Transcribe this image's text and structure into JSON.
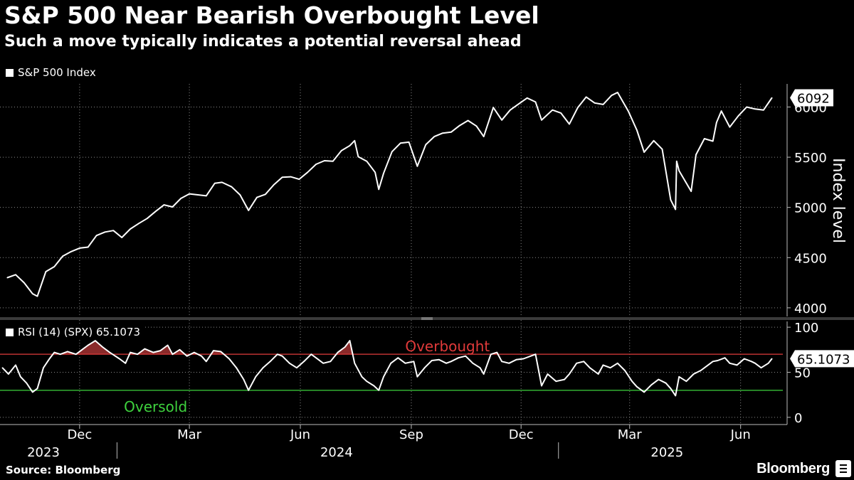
{
  "header": {
    "title": "S&P 500 Near Bearish Overbought Level",
    "subtitle": "Such a move typically indicates a potential reversal ahead"
  },
  "footer": {
    "source": "Source: Bloomberg",
    "brand": "Bloomberg"
  },
  "colors": {
    "background": "#000000",
    "line": "#ffffff",
    "grid": "#8a8a8a",
    "overbought": "#e03a3a",
    "oversold": "#3ed23e",
    "overbought_fill": "#8a2a2a"
  },
  "chart_data": [
    {
      "type": "line",
      "series": [
        {
          "name": "S&P 500 Index",
          "x": [
            "2023-10-02",
            "2023-10-09",
            "2023-10-16",
            "2023-10-23",
            "2023-10-27",
            "2023-11-03",
            "2023-11-10",
            "2023-11-17",
            "2023-11-24",
            "2023-12-01",
            "2023-12-08",
            "2023-12-15",
            "2023-12-22",
            "2023-12-29",
            "2024-01-05",
            "2024-01-12",
            "2024-01-19",
            "2024-01-26",
            "2024-02-02",
            "2024-02-09",
            "2024-02-16",
            "2024-02-23",
            "2024-03-01",
            "2024-03-08",
            "2024-03-15",
            "2024-03-22",
            "2024-03-28",
            "2024-04-05",
            "2024-04-12",
            "2024-04-19",
            "2024-04-26",
            "2024-05-03",
            "2024-05-10",
            "2024-05-17",
            "2024-05-24",
            "2024-05-31",
            "2024-06-07",
            "2024-06-14",
            "2024-06-21",
            "2024-06-28",
            "2024-07-05",
            "2024-07-12",
            "2024-07-16",
            "2024-07-19",
            "2024-07-26",
            "2024-08-02",
            "2024-08-05",
            "2024-08-09",
            "2024-08-16",
            "2024-08-23",
            "2024-08-30",
            "2024-09-06",
            "2024-09-13",
            "2024-09-20",
            "2024-09-27",
            "2024-10-04",
            "2024-10-11",
            "2024-10-18",
            "2024-10-25",
            "2024-10-31",
            "2024-11-08",
            "2024-11-15",
            "2024-11-22",
            "2024-11-29",
            "2024-12-06",
            "2024-12-13",
            "2024-12-18",
            "2024-12-27",
            "2025-01-03",
            "2025-01-10",
            "2025-01-17",
            "2025-01-24",
            "2025-01-31",
            "2025-02-07",
            "2025-02-14",
            "2025-02-19",
            "2025-02-28",
            "2025-03-07",
            "2025-03-13",
            "2025-03-21",
            "2025-03-28",
            "2025-04-04",
            "2025-04-08",
            "2025-04-09",
            "2025-04-11",
            "2025-04-21",
            "2025-04-25",
            "2025-05-02",
            "2025-05-09",
            "2025-05-12",
            "2025-05-16",
            "2025-05-23",
            "2025-05-30",
            "2025-06-06",
            "2025-06-13",
            "2025-06-20",
            "2025-06-27"
          ],
          "y": [
            4300,
            4330,
            4250,
            4140,
            4115,
            4360,
            4410,
            4515,
            4560,
            4595,
            4605,
            4720,
            4755,
            4770,
            4700,
            4785,
            4840,
            4890,
            4960,
            5025,
            5005,
            5090,
            5135,
            5125,
            5115,
            5240,
            5250,
            5205,
            5125,
            4970,
            5100,
            5130,
            5225,
            5300,
            5305,
            5280,
            5350,
            5430,
            5465,
            5460,
            5565,
            5615,
            5665,
            5505,
            5460,
            5350,
            5180,
            5340,
            5555,
            5640,
            5650,
            5410,
            5625,
            5705,
            5740,
            5750,
            5815,
            5865,
            5810,
            5705,
            5995,
            5870,
            5970,
            6030,
            6090,
            6050,
            5870,
            5970,
            5940,
            5830,
            5995,
            6100,
            6040,
            6025,
            6115,
            6145,
            5955,
            5770,
            5550,
            5665,
            5580,
            5075,
            4980,
            5460,
            5365,
            5160,
            5525,
            5685,
            5660,
            5845,
            5960,
            5800,
            5910,
            6000,
            5980,
            5970,
            6092
          ]
        }
      ],
      "ylabel": "Index level",
      "yticks": [
        4000,
        4500,
        5000,
        5500,
        6000
      ],
      "ylim": [
        3900,
        6230
      ],
      "xlim": [
        "2023-09-26",
        "2025-07-06"
      ],
      "xticks": [
        {
          "label": "Dec",
          "date": "2023-12-01"
        },
        {
          "label": "Mar",
          "date": "2024-03-01"
        },
        {
          "label": "Jun",
          "date": "2024-06-01"
        },
        {
          "label": "Sep",
          "date": "2024-09-01"
        },
        {
          "label": "Dec",
          "date": "2024-12-01"
        },
        {
          "label": "Mar",
          "date": "2025-03-01"
        },
        {
          "label": "Jun",
          "date": "2025-06-01"
        }
      ],
      "years": [
        {
          "label": "2023",
          "date": "2023-11-01"
        },
        {
          "label": "2024",
          "date": "2024-07-01"
        },
        {
          "label": "2025",
          "date": "2025-04-01"
        }
      ],
      "year_separators": [
        "2024-01-01",
        "2025-01-01"
      ],
      "last_value_label": "6092",
      "grid": true,
      "legend": "top-left"
    },
    {
      "type": "line",
      "series": [
        {
          "name": "RSI (14) (SPX) 65.1073",
          "x": [
            "2023-09-28",
            "2023-10-03",
            "2023-10-09",
            "2023-10-13",
            "2023-10-18",
            "2023-10-23",
            "2023-10-27",
            "2023-11-01",
            "2023-11-06",
            "2023-11-10",
            "2023-11-15",
            "2023-11-21",
            "2023-11-28",
            "2023-12-04",
            "2023-12-08",
            "2023-12-14",
            "2023-12-20",
            "2023-12-26",
            "2024-01-03",
            "2024-01-08",
            "2024-01-12",
            "2024-01-18",
            "2024-01-24",
            "2024-01-31",
            "2024-02-06",
            "2024-02-12",
            "2024-02-16",
            "2024-02-22",
            "2024-02-28",
            "2024-03-05",
            "2024-03-11",
            "2024-03-15",
            "2024-03-21",
            "2024-03-27",
            "2024-04-03",
            "2024-04-09",
            "2024-04-15",
            "2024-04-19",
            "2024-04-25",
            "2024-05-01",
            "2024-05-07",
            "2024-05-13",
            "2024-05-17",
            "2024-05-23",
            "2024-05-29",
            "2024-06-04",
            "2024-06-10",
            "2024-06-14",
            "2024-06-20",
            "2024-06-26",
            "2024-07-02",
            "2024-07-08",
            "2024-07-12",
            "2024-07-16",
            "2024-07-22",
            "2024-07-26",
            "2024-08-01",
            "2024-08-05",
            "2024-08-09",
            "2024-08-15",
            "2024-08-21",
            "2024-08-27",
            "2024-09-03",
            "2024-09-06",
            "2024-09-12",
            "2024-09-18",
            "2024-09-24",
            "2024-09-30",
            "2024-10-04",
            "2024-10-10",
            "2024-10-16",
            "2024-10-22",
            "2024-10-28",
            "2024-10-31",
            "2024-11-06",
            "2024-11-11",
            "2024-11-15",
            "2024-11-21",
            "2024-11-27",
            "2024-12-03",
            "2024-12-09",
            "2024-12-13",
            "2024-12-18",
            "2024-12-23",
            "2024-12-30",
            "2025-01-06",
            "2025-01-10",
            "2025-01-16",
            "2025-01-22",
            "2025-01-27",
            "2025-02-03",
            "2025-02-07",
            "2025-02-13",
            "2025-02-19",
            "2025-02-25",
            "2025-03-03",
            "2025-03-07",
            "2025-03-13",
            "2025-03-19",
            "2025-03-25",
            "2025-03-31",
            "2025-04-04",
            "2025-04-08",
            "2025-04-11",
            "2025-04-17",
            "2025-04-23",
            "2025-04-29",
            "2025-05-05",
            "2025-05-09",
            "2025-05-13",
            "2025-05-19",
            "2025-05-23",
            "2025-05-29",
            "2025-06-04",
            "2025-06-10",
            "2025-06-13",
            "2025-06-18",
            "2025-06-24",
            "2025-06-27"
          ],
          "y": [
            55,
            48,
            58,
            45,
            38,
            28,
            32,
            55,
            65,
            72,
            70,
            73,
            70,
            76,
            80,
            85,
            78,
            72,
            65,
            60,
            72,
            70,
            76,
            72,
            74,
            80,
            70,
            75,
            68,
            72,
            68,
            62,
            74,
            73,
            65,
            55,
            42,
            30,
            45,
            55,
            62,
            70,
            68,
            60,
            55,
            62,
            70,
            66,
            60,
            62,
            72,
            78,
            85,
            60,
            45,
            40,
            35,
            30,
            45,
            60,
            66,
            60,
            62,
            45,
            55,
            63,
            64,
            60,
            62,
            66,
            68,
            60,
            55,
            48,
            70,
            72,
            62,
            60,
            64,
            65,
            68,
            70,
            35,
            48,
            40,
            42,
            48,
            60,
            62,
            55,
            48,
            58,
            55,
            60,
            52,
            40,
            34,
            28,
            36,
            42,
            38,
            32,
            24,
            45,
            40,
            48,
            52,
            58,
            62,
            63,
            66,
            60,
            58,
            65,
            62,
            60,
            55,
            60,
            65.1073
          ]
        }
      ],
      "yticks": [
        0,
        50,
        100
      ],
      "ylim": [
        -8,
        108
      ],
      "overbought_level": 70,
      "oversold_level": 30,
      "overbought_label": "Overbought",
      "oversold_label": "Oversold",
      "last_value_label": "65.1073",
      "grid": true,
      "legend": "top-left"
    }
  ]
}
